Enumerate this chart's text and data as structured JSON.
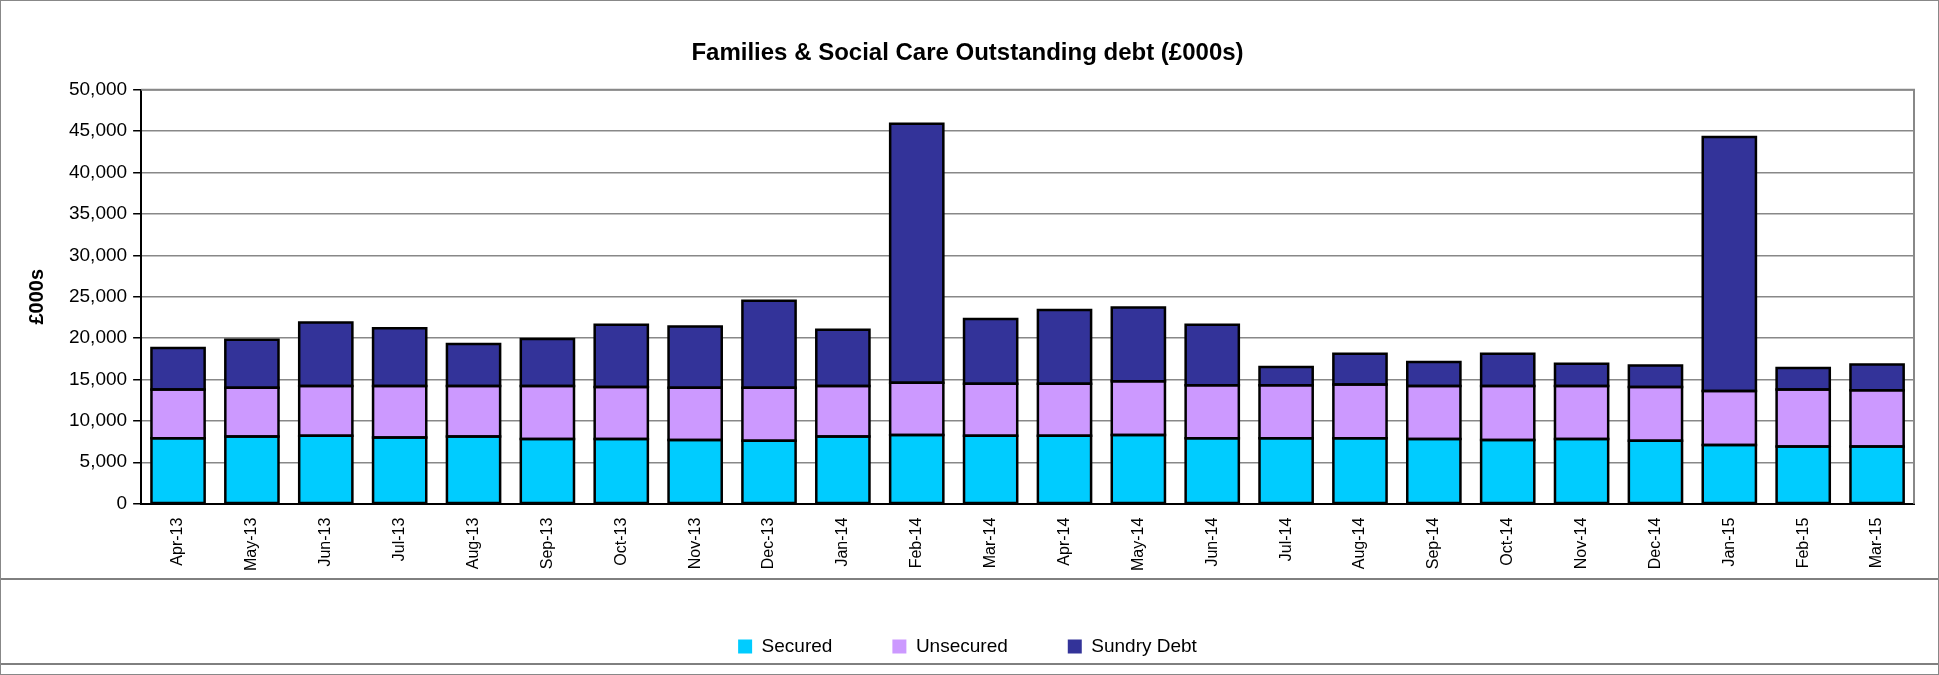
{
  "chart_data": {
    "type": "bar",
    "title": "Families & Social Care Outstanding debt (£000s)",
    "ylabel": "£000s",
    "categories": [
      "Apr-13",
      "May-13",
      "Jun-13",
      "Jul-13",
      "Aug-13",
      "Sep-13",
      "Oct-13",
      "Nov-13",
      "Dec-13",
      "Jan-14",
      "Feb-14",
      "Mar-14",
      "Apr-14",
      "May-14",
      "Jun-14",
      "Jul-14",
      "Aug-14",
      "Sep-14",
      "Oct-14",
      "Nov-14",
      "Dec-14",
      "Jan-15",
      "Feb-15",
      "Mar-15"
    ],
    "stacked": true,
    "series": [
      {
        "name": "Secured",
        "color": "#00ccff",
        "values": [
          7900,
          8100,
          8200,
          8000,
          8100,
          7800,
          7800,
          7700,
          7600,
          8100,
          8300,
          8200,
          8200,
          8300,
          7900,
          7900,
          7900,
          7800,
          7700,
          7800,
          7600,
          7100,
          6900,
          6900
        ]
      },
      {
        "name": "Unsecured",
        "color": "#cc99ff",
        "values": [
          5900,
          5900,
          6000,
          6200,
          6100,
          6400,
          6300,
          6300,
          6400,
          6100,
          6300,
          6300,
          6300,
          6500,
          6400,
          6400,
          6500,
          6400,
          6500,
          6400,
          6500,
          6500,
          6900,
          6800
        ]
      },
      {
        "name": "Sundry Debt",
        "color": "#333399",
        "values": [
          5000,
          5800,
          7700,
          7000,
          5100,
          5700,
          7500,
          7400,
          10500,
          6800,
          31300,
          7800,
          8900,
          8900,
          7300,
          2200,
          3700,
          2900,
          3900,
          2700,
          2600,
          30700,
          2600,
          3100
        ]
      }
    ],
    "ylim": [
      0,
      50000
    ],
    "yticks": [
      0,
      {
        "value": 5000,
        "label": "5,000"
      },
      {
        "value": 10000,
        "label": "10,000"
      },
      {
        "value": 15000,
        "label": "15,000"
      },
      {
        "value": 20000,
        "label": "20,000"
      },
      {
        "value": 25000,
        "label": "25,000"
      },
      {
        "value": 30000,
        "label": "30,000"
      },
      {
        "value": 35000,
        "label": "35,000"
      },
      {
        "value": 40000,
        "label": "40,000"
      },
      {
        "value": 45000,
        "label": "45,000"
      },
      {
        "value": 50000,
        "label": "50,000"
      }
    ],
    "grid": "y",
    "legend": "bottom"
  }
}
